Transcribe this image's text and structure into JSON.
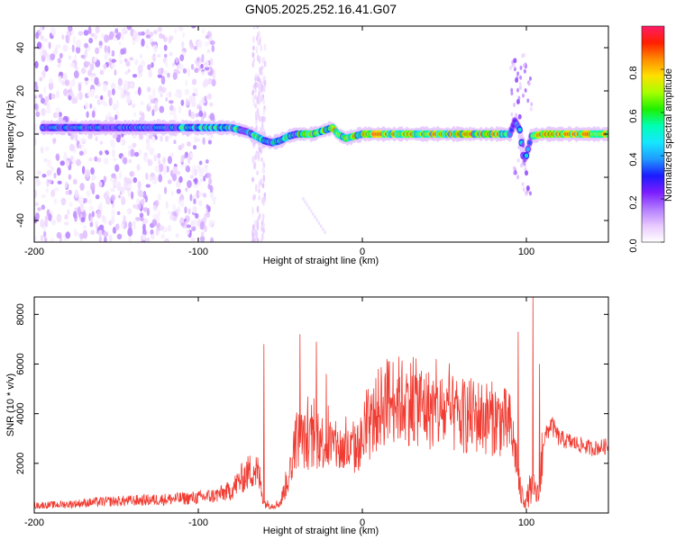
{
  "title": "GN05.2025.252.16.41.G07",
  "top_plot": {
    "type": "heatmap",
    "xlabel": "Height of straight line (km)",
    "ylabel": "Frequency (Hz)",
    "xlim": [
      -200,
      150
    ],
    "ylim": [
      -50,
      50
    ],
    "xticks": [
      -200,
      -100,
      0,
      100
    ],
    "yticks": [
      -40,
      -20,
      0,
      20,
      40
    ],
    "colorbar": {
      "label": "Normalized spectral amplitude",
      "range": [
        0.0,
        1.0
      ],
      "ticks": [
        "0.0",
        "0.2",
        "0.4",
        "0.6",
        "0.8"
      ],
      "colormap": [
        "#ffffff",
        "#e7c8ff",
        "#b27bff",
        "#7b1cff",
        "#1b1bff",
        "#1f9bff",
        "#16e7ff",
        "#00ffb4",
        "#1ef000",
        "#a7ff00",
        "#ffe000",
        "#ff8c00",
        "#ff1f00",
        "#ff1b68"
      ]
    },
    "ridge_trace": {
      "x": [
        -190,
        -150,
        -110,
        -90,
        -80,
        -75,
        -70,
        -65,
        -60,
        -55,
        -50,
        -45,
        -40,
        -30,
        -22,
        -18,
        -15,
        -10,
        -5,
        0,
        20,
        40,
        60,
        80,
        90,
        93,
        96,
        98,
        100,
        103,
        110,
        130,
        150
      ],
      "y": [
        3,
        3,
        3,
        3,
        3,
        2,
        1,
        -1,
        -3,
        -4,
        -3,
        -1,
        0,
        0,
        2,
        3,
        0,
        -2,
        -1,
        0,
        0,
        0,
        0,
        0,
        0,
        6,
        2,
        -10,
        -10,
        -1,
        0,
        0,
        0
      ]
    }
  },
  "bottom_plot": {
    "type": "line",
    "xlabel": "Height of straight line (km)",
    "ylabel": "SNR (10 * v/v)",
    "xlim": [
      -200,
      150
    ],
    "ylim": [
      0,
      8700
    ],
    "xticks": [
      -200,
      -100,
      0,
      100
    ],
    "yticks": [
      2000,
      4000,
      6000,
      8000
    ],
    "color": "#f03c32",
    "envelope": {
      "x": [
        -200,
        -180,
        -160,
        -140,
        -120,
        -100,
        -90,
        -80,
        -75,
        -70,
        -66,
        -63,
        -60,
        -55,
        -50,
        -45,
        -42,
        -40,
        -37,
        -35,
        -30,
        -25,
        -20,
        -15,
        -10,
        -5,
        0,
        5,
        10,
        15,
        20,
        25,
        30,
        35,
        40,
        50,
        60,
        70,
        80,
        85,
        90,
        94,
        96,
        98,
        100,
        102,
        104,
        106,
        108,
        110,
        115,
        120,
        130,
        140,
        150
      ],
      "y": [
        300,
        350,
        450,
        500,
        550,
        620,
        700,
        900,
        1300,
        1600,
        1800,
        1500,
        400,
        300,
        400,
        1500,
        2300,
        3000,
        3000,
        2900,
        2800,
        2900,
        2800,
        2600,
        2500,
        2500,
        2900,
        3500,
        4200,
        4500,
        4600,
        4500,
        4500,
        4400,
        4200,
        4000,
        3900,
        3900,
        3800,
        3700,
        3500,
        2200,
        900,
        600,
        500,
        900,
        1000,
        800,
        600,
        2800,
        3600,
        3000,
        2800,
        2600,
        2700
      ]
    },
    "spikes": [
      {
        "x": -60,
        "y": 6800
      },
      {
        "x": -38,
        "y": 7200
      },
      {
        "x": -28,
        "y": 6900
      },
      {
        "x": -22,
        "y": 5600
      },
      {
        "x": 15,
        "y": 6200
      },
      {
        "x": 95,
        "y": 7300
      },
      {
        "x": 104,
        "y": 8700
      },
      {
        "x": 108,
        "y": 6000
      }
    ]
  }
}
